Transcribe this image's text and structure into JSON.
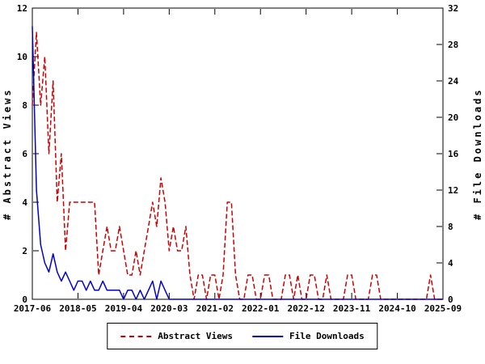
{
  "chart_data": {
    "type": "line",
    "title": "",
    "x_unit": "month",
    "x_range": [
      "2017-06",
      "2025-09"
    ],
    "x_tick_labels": [
      "2017-06",
      "2018-05",
      "2019-04",
      "2020-03",
      "2021-02",
      "2022-01",
      "2022-12",
      "2023-11",
      "2024-10",
      "2025-09"
    ],
    "left_axis": {
      "label": "# Abstract Views",
      "ticks": [
        0,
        2,
        4,
        6,
        8,
        10,
        12
      ],
      "lim": [
        0,
        12
      ]
    },
    "right_axis": {
      "label": "# File Downloads",
      "ticks": [
        0,
        4,
        8,
        12,
        16,
        20,
        24,
        28,
        32
      ],
      "lim": [
        0,
        32
      ]
    },
    "grid": false,
    "legend_position": "bottom-center",
    "series": [
      {
        "name": "Abstract Views",
        "color": "#cc0000",
        "style": "dashed",
        "axis": "left",
        "values": [
          8,
          11,
          8,
          10,
          6,
          9,
          4,
          6,
          2,
          4,
          4,
          4,
          4,
          4,
          4,
          4,
          1,
          2,
          3,
          2,
          2,
          3,
          2,
          1,
          1,
          2,
          1,
          2,
          3,
          4,
          3,
          5,
          4,
          2,
          3,
          2,
          2,
          3,
          1,
          0,
          1,
          1,
          0,
          1,
          1,
          0,
          1,
          4,
          4,
          1,
          0,
          0,
          1,
          1,
          0,
          0,
          1,
          1,
          0,
          0,
          0,
          1,
          1,
          0,
          1,
          0,
          0,
          1,
          1,
          0,
          0,
          1,
          0,
          0,
          0,
          0,
          1,
          1,
          0,
          0,
          0,
          0,
          1,
          1,
          0,
          0,
          0,
          0,
          0,
          0,
          0,
          0,
          0,
          0,
          0,
          0,
          1,
          0,
          0,
          0
        ]
      },
      {
        "name": "File Downloads",
        "color": "#0000cc",
        "style": "solid",
        "axis": "right",
        "values": [
          30,
          12,
          6,
          4,
          3,
          5,
          3,
          2,
          3,
          2,
          1,
          2,
          2,
          1,
          2,
          1,
          1,
          2,
          1,
          1,
          1,
          1,
          0,
          1,
          1,
          0,
          1,
          0,
          1,
          2,
          0,
          2,
          1,
          0,
          0,
          0,
          0,
          0,
          0,
          0,
          0,
          0,
          0,
          0,
          0,
          0,
          0,
          0,
          0,
          0,
          0,
          0,
          0,
          0,
          0,
          0,
          0,
          0,
          0,
          0,
          0,
          0,
          0,
          0,
          0,
          0,
          0,
          0,
          0,
          0,
          0,
          0,
          0,
          0,
          0,
          0,
          0,
          0,
          0,
          0,
          0,
          0,
          0,
          0,
          0,
          0,
          0,
          0,
          0,
          0,
          0,
          0,
          0,
          0,
          0,
          0,
          0,
          0,
          0,
          0
        ]
      }
    ]
  }
}
